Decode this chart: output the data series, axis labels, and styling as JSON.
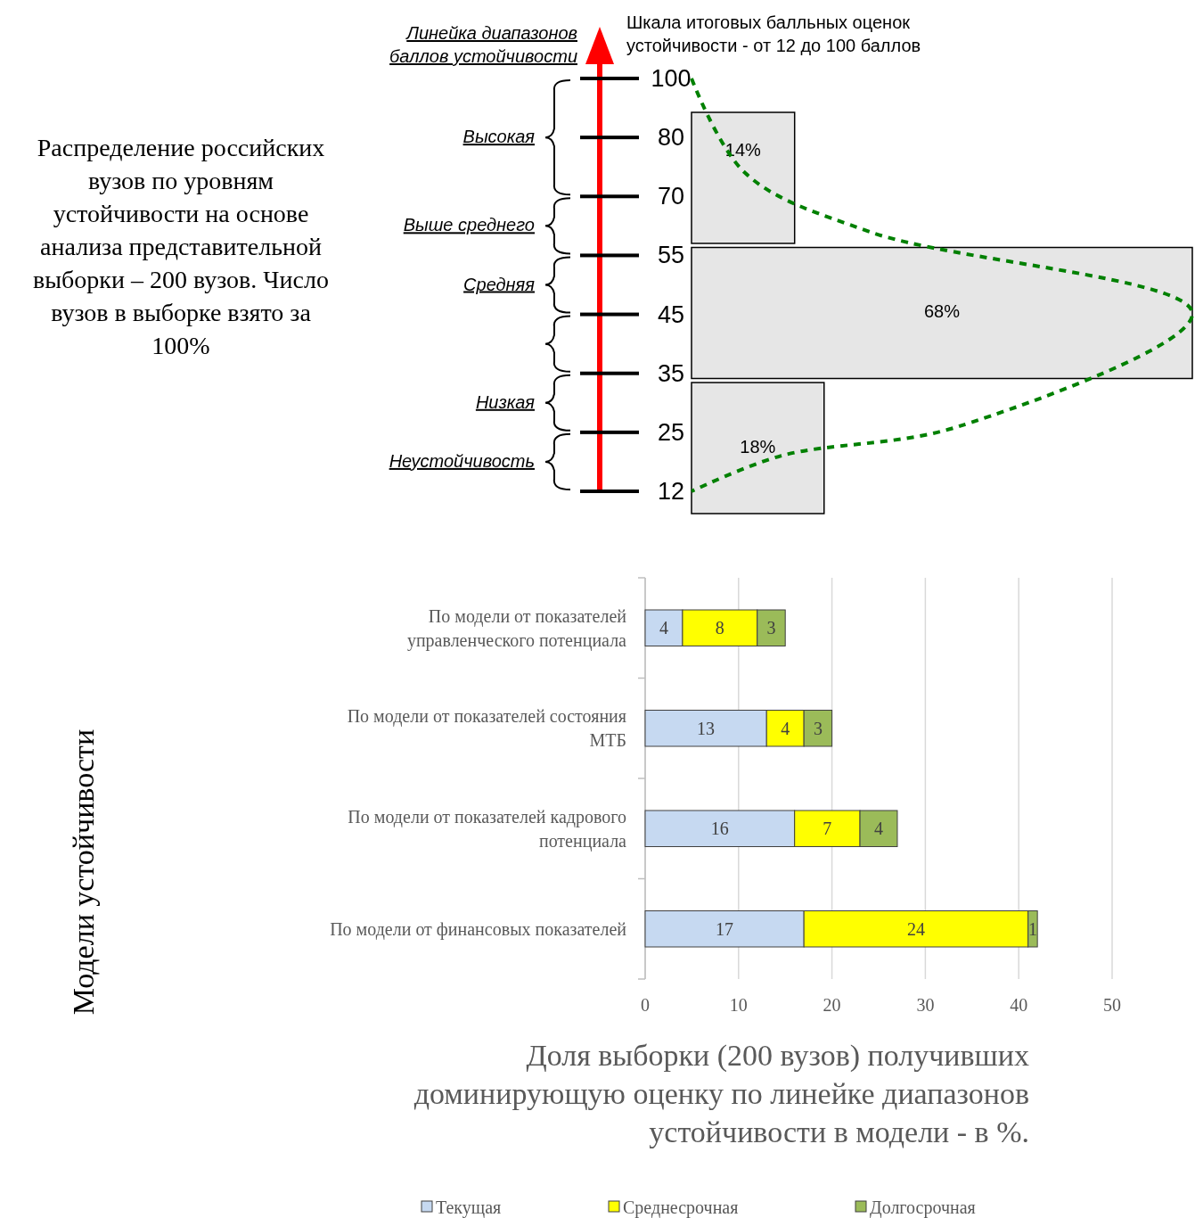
{
  "chart_data": [
    {
      "type": "other",
      "title": "Распределение российских вузов по уровням устойчивости на основе анализа представительной выборки – 200 вузов. Число вузов в выборке взято за 100%"
    },
    {
      "type": "bar",
      "orientation": "horizontal",
      "annotations": [
        "Линейка диапазонов баллов устойчивости",
        "Шкала итоговых балльных оценок устойчивости - от 12 до 100 баллов",
        "100",
        "80",
        "70",
        "55",
        "45",
        "35",
        "25",
        "12",
        "Высокая",
        "Выше среднего",
        "Средняя",
        "Низкая",
        "Неустойчивость"
      ],
      "categories": [
        null,
        null,
        null
      ],
      "values": [
        14,
        68,
        18
      ],
      "color": "#e6e6e6",
      "value_labels": [
        "14%",
        "68%",
        "18%"
      ]
    },
    {
      "type": "bar",
      "orientation": "horizontal",
      "stacked": true,
      "xlabel": "Доля выборки (200 вузов) получивших доминирующую оценку по линейке диапазонов устойчивости в модели - в %.",
      "ylabel": "Модели устойчивости",
      "categories": [
        "По модели от показателей управленческого потенциала",
        "По модели от показателей состояния МТБ",
        "По модели от показателей кадрового потенциала",
        "По модели  от финансовых показателей"
      ],
      "series": [
        {
          "name": "Текущая",
          "color": "#c6d9f1",
          "values": [
            4,
            13,
            16,
            17
          ]
        },
        {
          "name": "Среднесрочная",
          "color": "#ffff00",
          "values": [
            8,
            4,
            7,
            24
          ]
        },
        {
          "name": "Долгосрочная",
          "color": "#9bbb59",
          "values": [
            3,
            3,
            4,
            1
          ]
        }
      ],
      "xlim": [
        0,
        50
      ],
      "xticks": [
        0,
        10,
        20,
        30,
        40,
        50
      ],
      "grid": "x",
      "data_labels": true,
      "legend": "bottom"
    }
  ]
}
